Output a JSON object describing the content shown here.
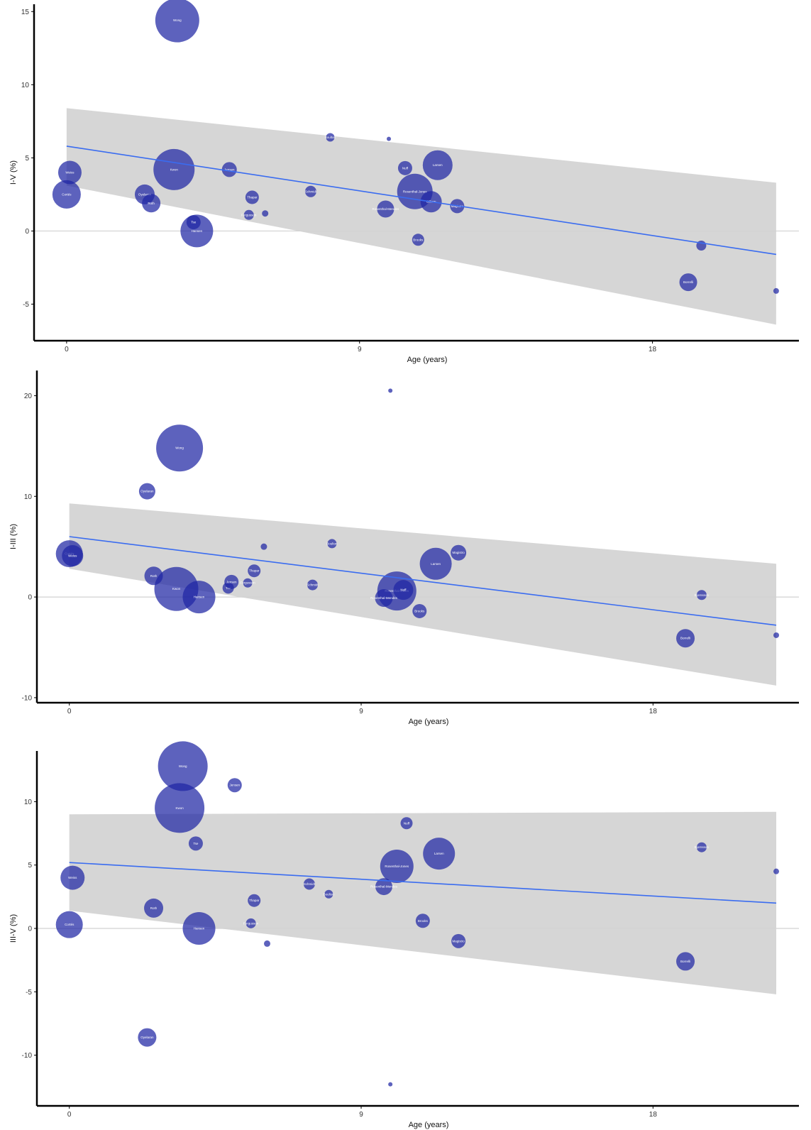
{
  "chart_data": [
    {
      "type": "scatter",
      "title": "",
      "xlabel": "Age (years)",
      "ylabel": "I-V (%)",
      "xlim": [
        -1,
        22.5
      ],
      "ylim": [
        -7.5,
        15.5
      ],
      "xticks": [
        0,
        9,
        18
      ],
      "yticks": [
        -5,
        0,
        5,
        10,
        15
      ],
      "reference_line_y": 0,
      "fit_line": {
        "x0": 0,
        "y0": 5.8,
        "x1": 21.8,
        "y1": -1.6
      },
      "confidence_band": {
        "x": [
          0,
          21.8
        ],
        "upper": [
          8.4,
          3.3
        ],
        "lower": [
          3.1,
          -6.4
        ]
      },
      "colors": {
        "bubble": "#1f26a3",
        "fit": "#3a6cf0",
        "band": "#c8c8c8"
      },
      "grid": false,
      "points": [
        {
          "x": 3.4,
          "y": 14.4,
          "size": 62,
          "label": "Wong"
        },
        {
          "x": 3.3,
          "y": 4.2,
          "size": 58,
          "label": "Kwon"
        },
        {
          "x": 4.0,
          "y": 0.0,
          "size": 46,
          "label": "Hansen"
        },
        {
          "x": 10.7,
          "y": 2.7,
          "size": 50,
          "label": "Rosenthal-Jones"
        },
        {
          "x": 11.4,
          "y": 4.5,
          "size": 42,
          "label": "Larsen"
        },
        {
          "x": 0.0,
          "y": 2.5,
          "size": 40,
          "label": "Cortés"
        },
        {
          "x": 0.1,
          "y": 4.0,
          "size": 33,
          "label": "Weiss"
        },
        {
          "x": 2.4,
          "y": 2.5,
          "size": 28,
          "label": "Oyelaran"
        },
        {
          "x": 2.6,
          "y": 1.9,
          "size": 26,
          "label": "Roth"
        },
        {
          "x": 3.9,
          "y": 0.6,
          "size": 20,
          "label": "Tse"
        },
        {
          "x": 5.0,
          "y": 4.2,
          "size": 21,
          "label": "Jensen"
        },
        {
          "x": 5.7,
          "y": 2.3,
          "size": 19,
          "label": "Thapar"
        },
        {
          "x": 5.6,
          "y": 1.1,
          "size": 14,
          "label": "Fergusson"
        },
        {
          "x": 6.1,
          "y": 1.2,
          "size": 9,
          "label": ""
        },
        {
          "x": 7.5,
          "y": 2.7,
          "size": 16,
          "label": "Schmidt"
        },
        {
          "x": 8.1,
          "y": 6.4,
          "size": 12,
          "label": "Boulton"
        },
        {
          "x": 9.9,
          "y": 6.3,
          "size": 6,
          "label": ""
        },
        {
          "x": 10.4,
          "y": 4.3,
          "size": 20,
          "label": "Nuff"
        },
        {
          "x": 9.8,
          "y": 1.5,
          "size": 24,
          "label": "Rosenthal-Mendes"
        },
        {
          "x": 11.2,
          "y": 2.0,
          "size": 30,
          "label": "Gilliam"
        },
        {
          "x": 12.0,
          "y": 1.7,
          "size": 20,
          "label": "Magistro"
        },
        {
          "x": 10.8,
          "y": -0.6,
          "size": 17,
          "label": "Brooks"
        },
        {
          "x": 19.5,
          "y": -1.0,
          "size": 14,
          "label": ""
        },
        {
          "x": 19.1,
          "y": -3.5,
          "size": 25,
          "label": "Borrelli"
        },
        {
          "x": 21.8,
          "y": -4.1,
          "size": 8,
          "label": ""
        }
      ]
    },
    {
      "type": "scatter",
      "title": "",
      "xlabel": "Age (years)",
      "ylabel": "I-III (%)",
      "xlim": [
        -1,
        22.5
      ],
      "ylim": [
        -10.5,
        22.5
      ],
      "xticks": [
        0,
        9,
        18
      ],
      "yticks": [
        -10,
        0,
        10,
        20
      ],
      "reference_line_y": 0,
      "fit_line": {
        "x0": 0,
        "y0": 6.0,
        "x1": 21.8,
        "y1": -2.8
      },
      "confidence_band": {
        "x": [
          0,
          21.8
        ],
        "upper": [
          9.3,
          3.3
        ],
        "lower": [
          2.8,
          -8.8
        ]
      },
      "colors": {
        "bubble": "#1f26a3",
        "fit": "#3a6cf0",
        "band": "#c8c8c8"
      },
      "grid": false,
      "points": [
        {
          "x": 3.4,
          "y": 14.8,
          "size": 66,
          "label": "Wong"
        },
        {
          "x": 2.4,
          "y": 10.5,
          "size": 23,
          "label": "Oyelaran"
        },
        {
          "x": 3.3,
          "y": 0.8,
          "size": 62,
          "label": "Kwon"
        },
        {
          "x": 4.0,
          "y": 0.0,
          "size": 46,
          "label": "Hansen"
        },
        {
          "x": 2.6,
          "y": 2.1,
          "size": 26,
          "label": "Roth"
        },
        {
          "x": 0.0,
          "y": 4.3,
          "size": 38,
          "label": "Cortés"
        },
        {
          "x": 0.1,
          "y": 4.1,
          "size": 30,
          "label": "Weiss"
        },
        {
          "x": 4.9,
          "y": 0.9,
          "size": 16,
          "label": "Tse"
        },
        {
          "x": 5.0,
          "y": 1.5,
          "size": 20,
          "label": "Jensen"
        },
        {
          "x": 5.7,
          "y": 2.6,
          "size": 18,
          "label": "Thapar"
        },
        {
          "x": 5.5,
          "y": 1.4,
          "size": 13,
          "label": "Fergusson"
        },
        {
          "x": 6.0,
          "y": 5.0,
          "size": 9,
          "label": ""
        },
        {
          "x": 7.5,
          "y": 1.2,
          "size": 15,
          "label": "Schmidt"
        },
        {
          "x": 8.1,
          "y": 5.3,
          "size": 13,
          "label": "Boulton"
        },
        {
          "x": 9.9,
          "y": 20.5,
          "size": 6,
          "label": ""
        },
        {
          "x": 10.1,
          "y": 0.6,
          "size": 55,
          "label": "Rosenthal-Jones"
        },
        {
          "x": 10.3,
          "y": 0.7,
          "size": 28,
          "label": "Nuff"
        },
        {
          "x": 9.7,
          "y": -0.1,
          "size": 25,
          "label": "Rosenthal-Mendes"
        },
        {
          "x": 11.3,
          "y": 3.3,
          "size": 45,
          "label": "Larsen"
        },
        {
          "x": 12.0,
          "y": 4.4,
          "size": 22,
          "label": "Magistro"
        },
        {
          "x": 10.8,
          "y": -1.4,
          "size": 20,
          "label": "Brooks"
        },
        {
          "x": 19.5,
          "y": 0.2,
          "size": 14,
          "label": "Bjornsson"
        },
        {
          "x": 19.0,
          "y": -4.1,
          "size": 26,
          "label": "Borrelli"
        },
        {
          "x": 21.8,
          "y": -3.8,
          "size": 8,
          "label": ""
        }
      ]
    },
    {
      "type": "scatter",
      "title": "",
      "xlabel": "Age (years)",
      "ylabel": "III-V (%)",
      "xlim": [
        -1,
        22.5
      ],
      "ylim": [
        -14,
        14
      ],
      "xticks": [
        0,
        9,
        18
      ],
      "yticks": [
        -10,
        -5,
        0,
        5,
        10
      ],
      "reference_line_y": 0,
      "fit_line": {
        "x0": 0,
        "y0": 5.2,
        "x1": 21.8,
        "y1": 2.0
      },
      "confidence_band": {
        "x": [
          0,
          21.8
        ],
        "upper": [
          9.0,
          9.2
        ],
        "lower": [
          1.4,
          -5.2
        ]
      },
      "colors": {
        "bubble": "#1f26a3",
        "fit": "#3a6cf0",
        "band": "#c8c8c8"
      },
      "grid": false,
      "points": [
        {
          "x": 3.5,
          "y": 12.8,
          "size": 70,
          "label": "Wong"
        },
        {
          "x": 3.4,
          "y": 9.5,
          "size": 70,
          "label": "Kwon"
        },
        {
          "x": 5.1,
          "y": 11.3,
          "size": 20,
          "label": "Jensen"
        },
        {
          "x": 3.9,
          "y": 6.7,
          "size": 20,
          "label": "Tse"
        },
        {
          "x": 0.1,
          "y": 4.0,
          "size": 34,
          "label": "Weiss"
        },
        {
          "x": 0.0,
          "y": 0.3,
          "size": 38,
          "label": "Cortés"
        },
        {
          "x": 2.6,
          "y": 1.6,
          "size": 27,
          "label": "Roth"
        },
        {
          "x": 4.0,
          "y": 0.0,
          "size": 46,
          "label": "Hansen"
        },
        {
          "x": 5.7,
          "y": 2.2,
          "size": 18,
          "label": "Thapar"
        },
        {
          "x": 5.6,
          "y": 0.4,
          "size": 14,
          "label": "Fergusson"
        },
        {
          "x": 6.1,
          "y": -1.2,
          "size": 9,
          "label": ""
        },
        {
          "x": 7.4,
          "y": 3.5,
          "size": 16,
          "label": "Schmidt"
        },
        {
          "x": 8.0,
          "y": 2.7,
          "size": 12,
          "label": "Boulton"
        },
        {
          "x": 9.9,
          "y": -12.3,
          "size": 6,
          "label": ""
        },
        {
          "x": 10.1,
          "y": 4.9,
          "size": 47,
          "label": "Rosenthal-Jones"
        },
        {
          "x": 10.4,
          "y": 8.3,
          "size": 17,
          "label": "Nuff"
        },
        {
          "x": 9.7,
          "y": 3.3,
          "size": 24,
          "label": "Rosenthal-Mendes"
        },
        {
          "x": 11.4,
          "y": 5.9,
          "size": 45,
          "label": "Larsen"
        },
        {
          "x": 10.9,
          "y": 0.6,
          "size": 20,
          "label": "Brooks"
        },
        {
          "x": 12.0,
          "y": -1.0,
          "size": 20,
          "label": "Magistro"
        },
        {
          "x": 2.4,
          "y": -8.6,
          "size": 26,
          "label": "Oyelaran"
        },
        {
          "x": 19.5,
          "y": 6.4,
          "size": 14,
          "label": "Bjornsson"
        },
        {
          "x": 19.0,
          "y": -2.6,
          "size": 26,
          "label": "Borrelli"
        },
        {
          "x": 21.8,
          "y": 4.5,
          "size": 8,
          "label": ""
        }
      ]
    }
  ]
}
